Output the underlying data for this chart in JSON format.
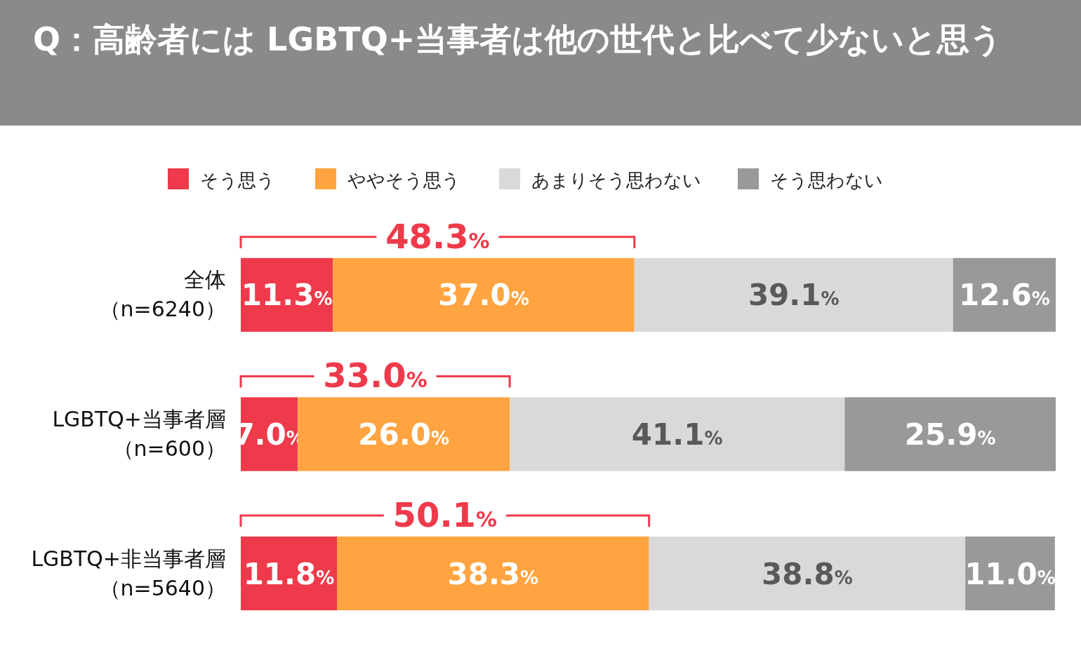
{
  "chart_data": {
    "type": "bar",
    "orientation": "horizontal",
    "stacked": true,
    "title": "Q：高齢者には LGBTQ+当事者は他の世代と比べて少ないと思う",
    "categories": [
      "全体（n=6240）",
      "LGBTQ+当事者層（n=600）",
      "LGBTQ+非当事者層（n=5640）"
    ],
    "series": [
      {
        "name": "そう思う",
        "color": "#ee3a4a",
        "values": [
          11.3,
          7.0,
          11.8
        ],
        "value_labels": [
          "11.3%",
          "7.0%",
          "11.8%"
        ]
      },
      {
        "name": "ややそう思う",
        "color": "#ffa440",
        "values": [
          37.0,
          26.0,
          38.3
        ],
        "value_labels": [
          "37.0%",
          "26.0%",
          "38.3%"
        ]
      },
      {
        "name": "あまりそう思わない",
        "color": "#d9d9d9",
        "values": [
          39.1,
          41.1,
          38.8
        ],
        "value_labels": [
          "39.1%",
          "41.1%",
          "38.8%"
        ]
      },
      {
        "name": "そう思わない",
        "color": "#999999",
        "values": [
          12.6,
          25.9,
          11.0
        ],
        "value_labels": [
          "12.6%",
          "25.9%",
          "11.0%"
        ]
      }
    ],
    "xlim": [
      0,
      100
    ],
    "tick_labels": "y",
    "legend": "top",
    "annotations": [
      "48.3%",
      "33.0%",
      "50.1%"
    ]
  }
}
